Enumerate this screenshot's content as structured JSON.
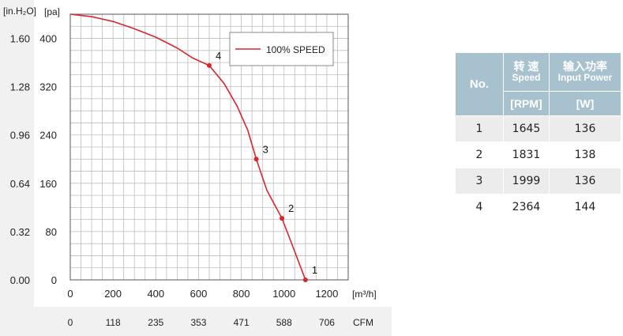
{
  "chart_data": {
    "type": "line",
    "y_unit_left": "[in.H₂O]",
    "y_unit_right": "[pa]",
    "x_unit": "[m³/h]",
    "x2_unit": "CFM",
    "x_ticks": [
      0,
      200,
      400,
      600,
      800,
      1000,
      1200
    ],
    "cfm_ticks": [
      "0",
      "118",
      "235",
      "353",
      "471",
      "588",
      "706"
    ],
    "y_pa_ticks": [
      0,
      80,
      160,
      240,
      320,
      400
    ],
    "y_inwg_ticks": [
      "0.00",
      "0.32",
      "0.64",
      "0.96",
      "1.28",
      "1.60"
    ],
    "xlim": [
      0,
      1300
    ],
    "ylim": [
      0,
      440
    ],
    "grid": true,
    "legend_position": "top-right",
    "series": [
      {
        "name": "100% SPEED",
        "color": "#d7262e",
        "points": [
          {
            "x": 0,
            "y": 440
          },
          {
            "x": 100,
            "y": 436
          },
          {
            "x": 200,
            "y": 428
          },
          {
            "x": 300,
            "y": 416
          },
          {
            "x": 400,
            "y": 402
          },
          {
            "x": 500,
            "y": 384
          },
          {
            "x": 570,
            "y": 368
          },
          {
            "x": 650,
            "y": 355
          },
          {
            "x": 720,
            "y": 325
          },
          {
            "x": 780,
            "y": 288
          },
          {
            "x": 830,
            "y": 248
          },
          {
            "x": 870,
            "y": 200
          },
          {
            "x": 920,
            "y": 148
          },
          {
            "x": 990,
            "y": 102
          },
          {
            "x": 1040,
            "y": 56
          },
          {
            "x": 1100,
            "y": 0
          }
        ]
      }
    ],
    "marked_points": [
      {
        "label": "1",
        "x": 1100,
        "y": 0
      },
      {
        "label": "2",
        "x": 990,
        "y": 102
      },
      {
        "label": "3",
        "x": 870,
        "y": 200
      },
      {
        "label": "4",
        "x": 650,
        "y": 355
      }
    ]
  },
  "table": {
    "header_no": "No.",
    "header_speed_cn": "转 速",
    "header_speed_en": "Speed",
    "header_power_cn": "输入功率",
    "header_power_en": "Input Power",
    "unit_speed": "[RPM]",
    "unit_power": "[W]",
    "rows": [
      {
        "no": "1",
        "speed": "1645",
        "power": "136"
      },
      {
        "no": "2",
        "speed": "1831",
        "power": "138"
      },
      {
        "no": "3",
        "speed": "1999",
        "power": "136"
      },
      {
        "no": "4",
        "speed": "2364",
        "power": "144"
      }
    ]
  }
}
